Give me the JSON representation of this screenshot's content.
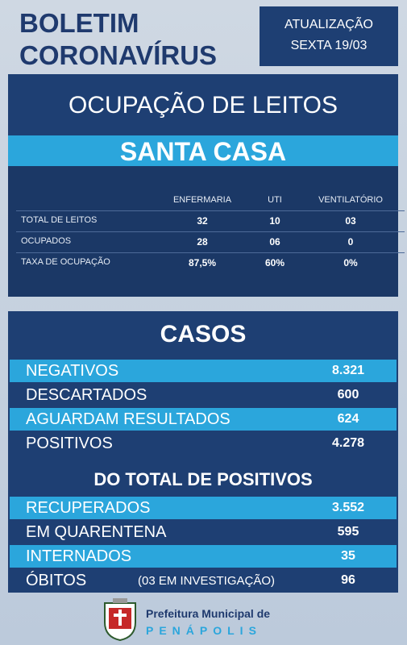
{
  "header": {
    "title_line1": "BOLETIM",
    "title_line2": "CORONAVÍRUS",
    "update_label": "ATUALIZAÇÃO",
    "update_date": "SEXTA 19/03"
  },
  "beds": {
    "title": "OCUPAÇÃO DE LEITOS",
    "subtitle": "SANTA CASA",
    "columns": [
      "ENFERMARIA",
      "UTI",
      "VENTILATÓRIO"
    ],
    "rows": [
      {
        "label": "TOTAL DE LEITOS",
        "values": [
          "32",
          "10",
          "03"
        ]
      },
      {
        "label": "OCUPADOS",
        "values": [
          "28",
          "06",
          "0"
        ]
      },
      {
        "label": "TAXA DE OCUPAÇÃO",
        "values": [
          "87,5%",
          "60%",
          "0%"
        ]
      }
    ]
  },
  "cases": {
    "title": "CASOS",
    "rows": [
      {
        "label": "NEGATIVOS",
        "value": "8.321"
      },
      {
        "label": "DESCARTADOS",
        "value": "600"
      },
      {
        "label": "AGUARDAM RESULTADOS",
        "value": "624"
      },
      {
        "label": "POSITIVOS",
        "value": "4.278"
      }
    ],
    "positives_title": "DO TOTAL DE POSITIVOS",
    "positive_rows": [
      {
        "label": "RECUPERADOS",
        "value": "3.552"
      },
      {
        "label": "EM QUARENTENA",
        "value": "595"
      },
      {
        "label": "INTERNADOS",
        "value": "35"
      },
      {
        "label": "ÓBITOS",
        "value": "96",
        "note": "(03 EM INVESTIGAÇÃO)"
      }
    ]
  },
  "footer": {
    "line1": "Prefeitura Municipal de",
    "line2": "PENÁPOLIS"
  }
}
